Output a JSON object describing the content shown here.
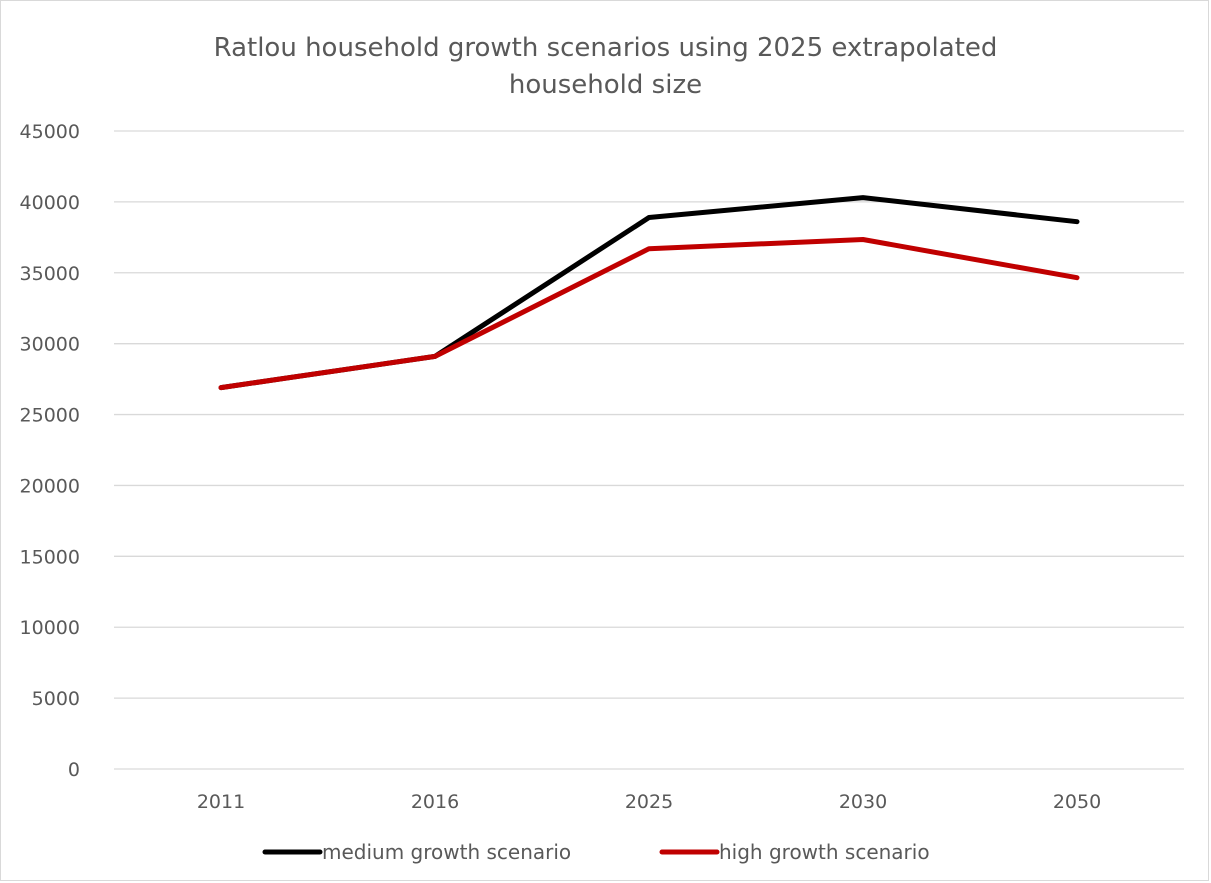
{
  "chart_data": {
    "type": "line",
    "title": "Ratlou household growth scenarios using 2025 extrapolated\nhousehold size",
    "categories": [
      "2011",
      "2016",
      "2025",
      "2030",
      "2050"
    ],
    "series": [
      {
        "name": "medium growth scenario",
        "color": "#000000",
        "values": [
          26900,
          29100,
          38900,
          40300,
          38600
        ]
      },
      {
        "name": "high growth scenario",
        "color": "#c00000",
        "values": [
          26900,
          29100,
          36700,
          37350,
          34650
        ]
      }
    ],
    "ylim": [
      0,
      45000
    ],
    "yticks": [
      0,
      5000,
      10000,
      15000,
      20000,
      25000,
      30000,
      35000,
      40000,
      45000
    ],
    "grid": true,
    "legend": "bottom"
  }
}
